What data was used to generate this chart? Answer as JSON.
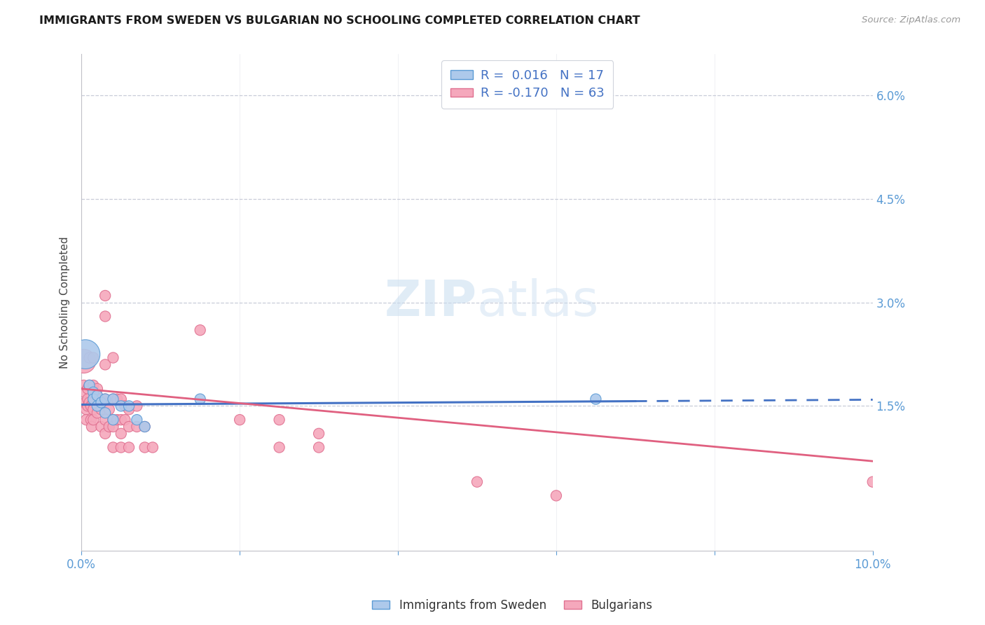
{
  "title": "IMMIGRANTS FROM SWEDEN VS BULGARIAN NO SCHOOLING COMPLETED CORRELATION CHART",
  "source": "Source: ZipAtlas.com",
  "ylabel": "No Schooling Completed",
  "xmin": 0.0,
  "xmax": 0.1,
  "ymin": -0.006,
  "ymax": 0.066,
  "sweden_color": "#adc9eb",
  "bulgarian_color": "#f5a8bc",
  "sweden_edge_color": "#5b9bd5",
  "bulgarian_edge_color": "#e07090",
  "sweden_line_color": "#4472c4",
  "bulgarian_line_color": "#e06080",
  "grid_color": "#c8ccd8",
  "axis_color": "#c0c0c8",
  "tick_label_color": "#5b9bd5",
  "title_color": "#1a1a1a",
  "ylabel_color": "#444444",
  "watermark_color": "#c8ddf0",
  "yticks": [
    0.015,
    0.03,
    0.045,
    0.06
  ],
  "ytick_labels": [
    "1.5%",
    "3.0%",
    "4.5%",
    "6.0%"
  ],
  "sweden_scatter": [
    [
      0.0005,
      0.0225
    ],
    [
      0.001,
      0.018
    ],
    [
      0.0015,
      0.017
    ],
    [
      0.0015,
      0.016
    ],
    [
      0.002,
      0.0165
    ],
    [
      0.002,
      0.015
    ],
    [
      0.0025,
      0.0155
    ],
    [
      0.003,
      0.016
    ],
    [
      0.003,
      0.014
    ],
    [
      0.004,
      0.016
    ],
    [
      0.004,
      0.013
    ],
    [
      0.005,
      0.015
    ],
    [
      0.006,
      0.015
    ],
    [
      0.007,
      0.013
    ],
    [
      0.008,
      0.012
    ],
    [
      0.015,
      0.016
    ],
    [
      0.065,
      0.016
    ]
  ],
  "sweden_sizes": [
    900,
    120,
    120,
    120,
    120,
    120,
    120,
    120,
    120,
    120,
    120,
    120,
    120,
    120,
    120,
    120,
    120
  ],
  "bulgarian_scatter": [
    [
      0.0003,
      0.0215
    ],
    [
      0.0003,
      0.018
    ],
    [
      0.0004,
      0.017
    ],
    [
      0.0005,
      0.0155
    ],
    [
      0.0006,
      0.0145
    ],
    [
      0.0006,
      0.013
    ],
    [
      0.0008,
      0.0175
    ],
    [
      0.0008,
      0.016
    ],
    [
      0.0008,
      0.015
    ],
    [
      0.001,
      0.022
    ],
    [
      0.001,
      0.018
    ],
    [
      0.001,
      0.0155
    ],
    [
      0.0012,
      0.015
    ],
    [
      0.0012,
      0.013
    ],
    [
      0.0013,
      0.012
    ],
    [
      0.0015,
      0.022
    ],
    [
      0.0015,
      0.018
    ],
    [
      0.0015,
      0.0155
    ],
    [
      0.0015,
      0.0145
    ],
    [
      0.0015,
      0.013
    ],
    [
      0.002,
      0.0175
    ],
    [
      0.002,
      0.014
    ],
    [
      0.0025,
      0.016
    ],
    [
      0.0025,
      0.0145
    ],
    [
      0.0025,
      0.012
    ],
    [
      0.003,
      0.031
    ],
    [
      0.003,
      0.028
    ],
    [
      0.003,
      0.021
    ],
    [
      0.003,
      0.016
    ],
    [
      0.003,
      0.013
    ],
    [
      0.003,
      0.011
    ],
    [
      0.0035,
      0.0145
    ],
    [
      0.0035,
      0.012
    ],
    [
      0.004,
      0.022
    ],
    [
      0.004,
      0.016
    ],
    [
      0.004,
      0.013
    ],
    [
      0.004,
      0.012
    ],
    [
      0.004,
      0.009
    ],
    [
      0.0045,
      0.016
    ],
    [
      0.0045,
      0.013
    ],
    [
      0.005,
      0.016
    ],
    [
      0.005,
      0.013
    ],
    [
      0.005,
      0.011
    ],
    [
      0.005,
      0.009
    ],
    [
      0.0055,
      0.015
    ],
    [
      0.0055,
      0.013
    ],
    [
      0.006,
      0.0145
    ],
    [
      0.006,
      0.012
    ],
    [
      0.006,
      0.009
    ],
    [
      0.007,
      0.015
    ],
    [
      0.007,
      0.012
    ],
    [
      0.008,
      0.012
    ],
    [
      0.008,
      0.009
    ],
    [
      0.009,
      0.009
    ],
    [
      0.015,
      0.026
    ],
    [
      0.02,
      0.013
    ],
    [
      0.025,
      0.013
    ],
    [
      0.025,
      0.009
    ],
    [
      0.03,
      0.011
    ],
    [
      0.03,
      0.009
    ],
    [
      0.05,
      0.004
    ],
    [
      0.06,
      0.002
    ],
    [
      0.1,
      0.004
    ]
  ],
  "bulgarian_sizes": [
    600,
    120,
    120,
    120,
    120,
    120,
    120,
    120,
    120,
    120,
    120,
    120,
    120,
    120,
    120,
    120,
    120,
    120,
    120,
    120,
    120,
    120,
    120,
    120,
    120,
    120,
    120,
    120,
    120,
    120,
    120,
    120,
    120,
    120,
    120,
    120,
    120,
    120,
    120,
    120,
    120,
    120,
    120,
    120,
    120,
    120,
    120,
    120,
    120,
    120,
    120,
    120,
    120,
    120,
    120,
    120,
    120,
    120,
    120,
    120,
    120,
    120,
    120
  ],
  "sweden_line": {
    "x0": 0.0,
    "y0": 0.0152,
    "x1": 0.07,
    "y1": 0.0157,
    "solid_end": 0.07
  },
  "bulgarian_line": {
    "x0": 0.0,
    "y0": 0.0175,
    "x1": 0.1,
    "y1": 0.007
  }
}
